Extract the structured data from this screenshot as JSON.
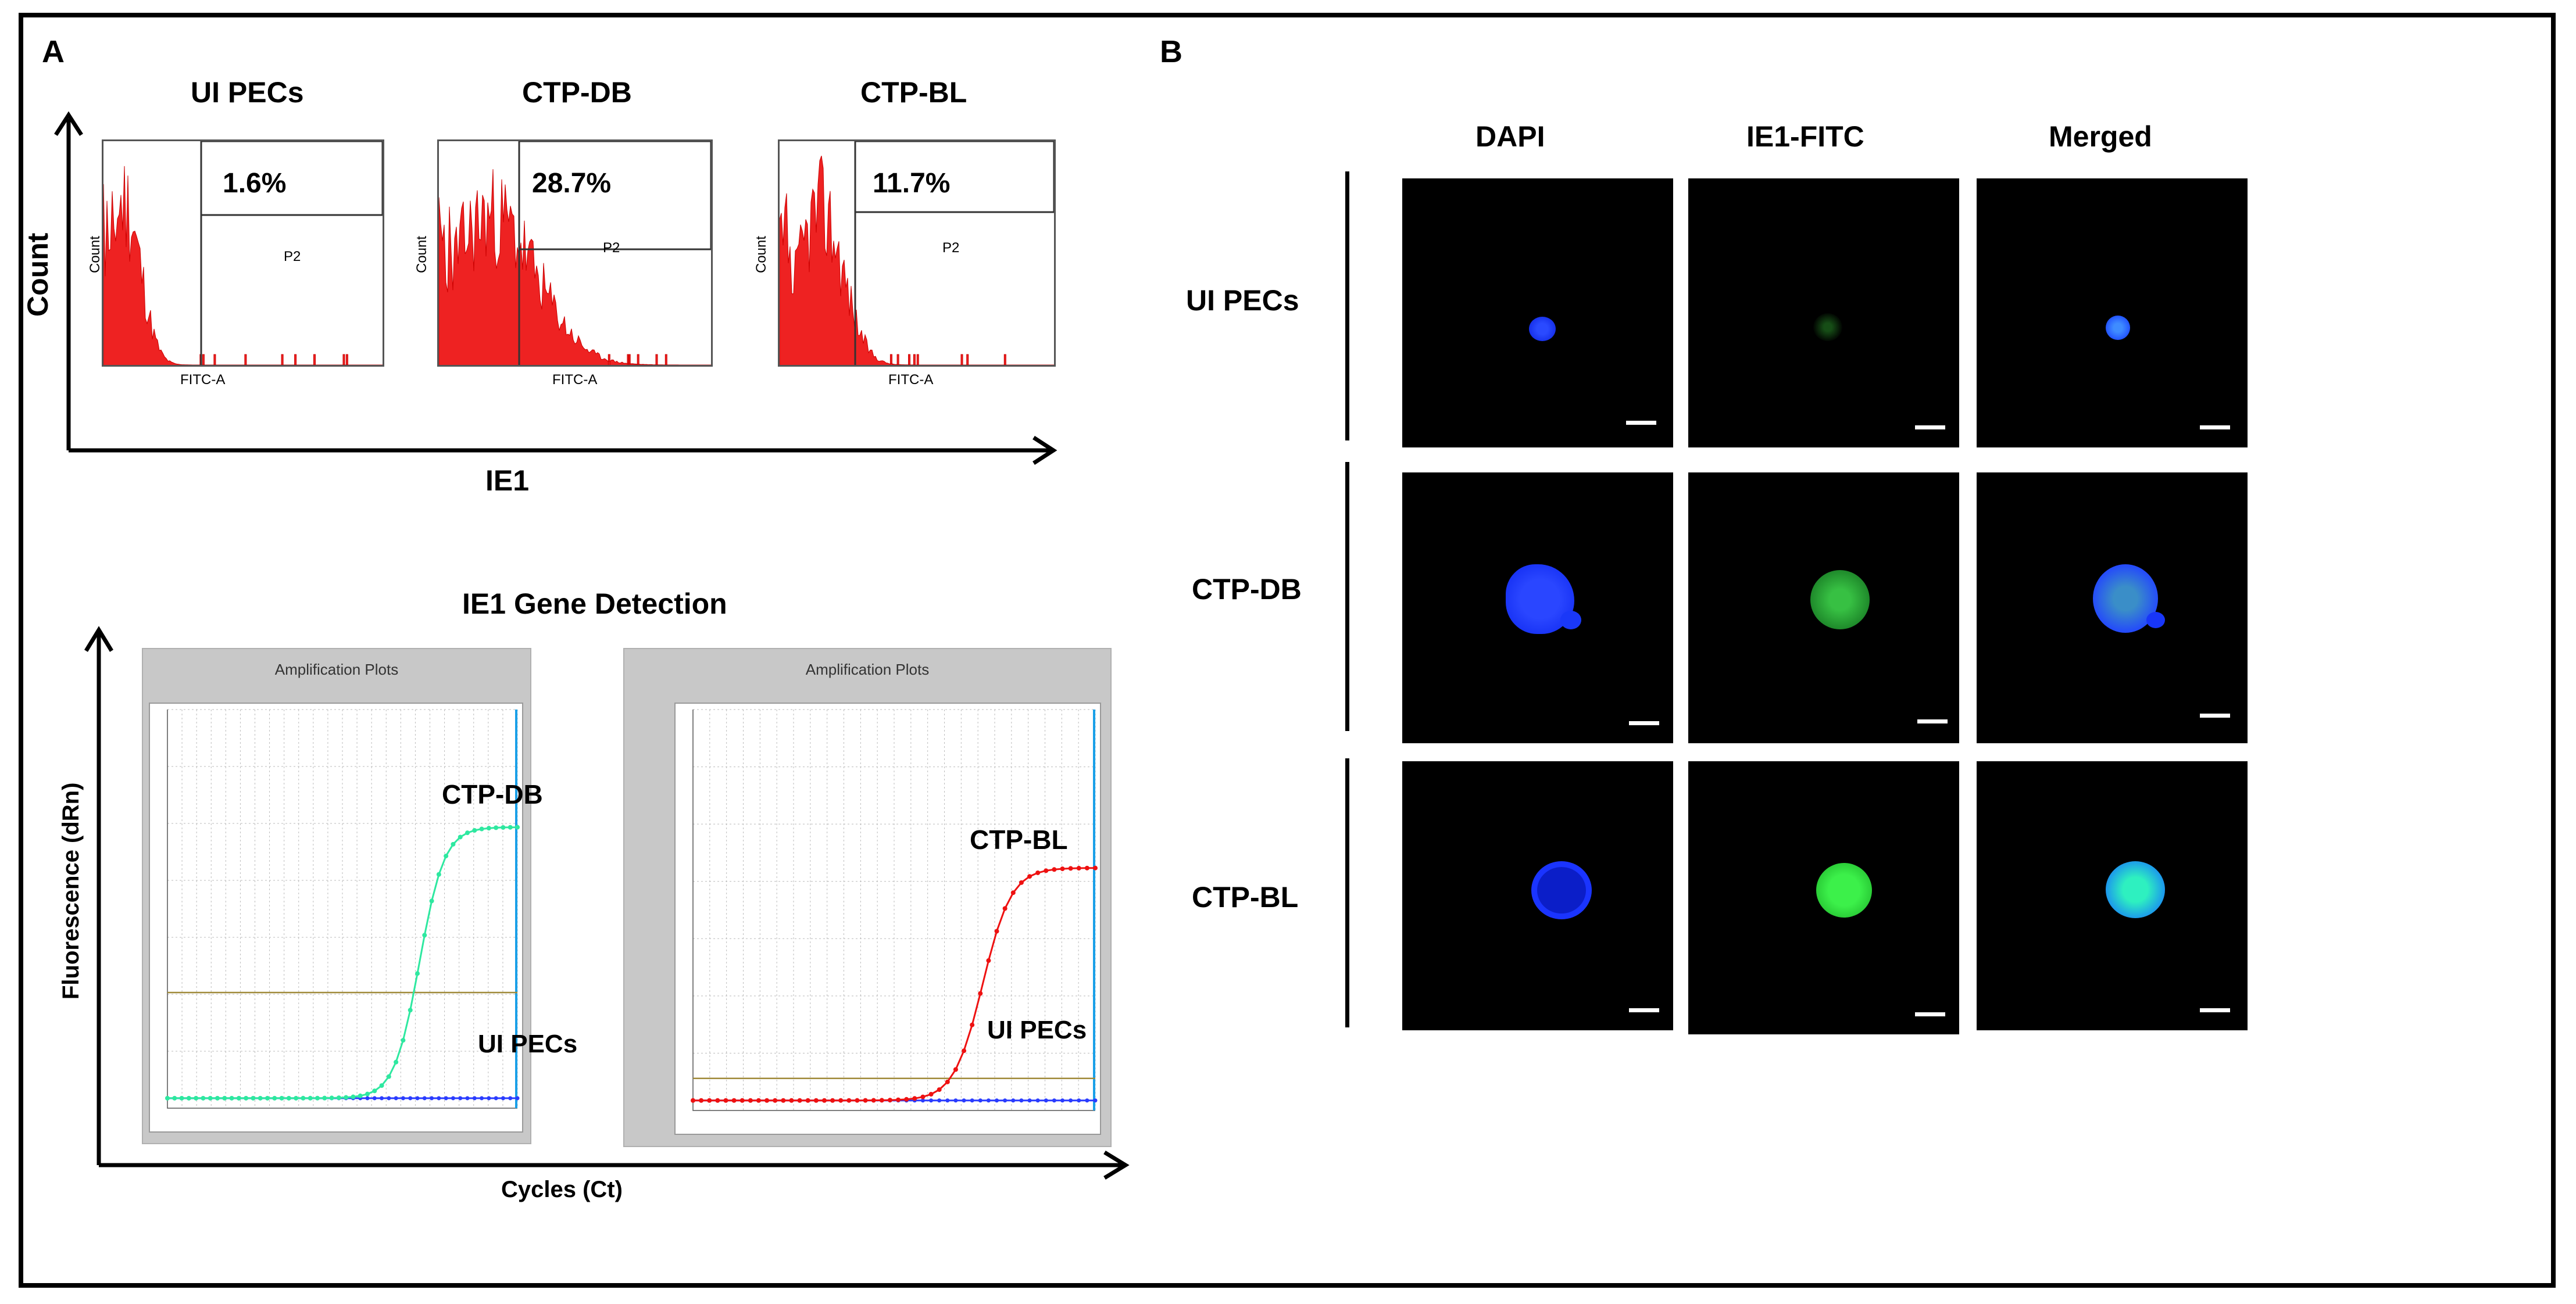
{
  "panel_a": {
    "letter": "A",
    "flow": {
      "y_axis_label": "Count",
      "x_axis_label": "IE1",
      "plots": [
        {
          "title": "UI PECs",
          "percent": "1.6%",
          "gate": "P2",
          "xlabel": "FITC-A",
          "ylabel": "Count"
        },
        {
          "title": "CTP-DB",
          "percent": "28.7%",
          "gate": "P2",
          "xlabel": "FITC-A",
          "ylabel": "Count"
        },
        {
          "title": "CTP-BL",
          "percent": "11.7%",
          "gate": "P2",
          "xlabel": "FITC-A",
          "ylabel": "Count"
        }
      ]
    },
    "pcr": {
      "title": "IE1 Gene Detection",
      "y_axis_label": "Fluorescence (dRn)",
      "x_axis_label": "Cycles (Ct)",
      "plots": [
        {
          "window_title": "Amplification Plots",
          "positive_label": "CTP-DB",
          "negative_label": "UI PECs",
          "color": "#2ee8a0",
          "xlabel": "Cycles",
          "ylabel": "Fluorescence (dRn)"
        },
        {
          "window_title": "Amplification Plots",
          "positive_label": "CTP-BL",
          "negative_label": "UI PECs",
          "color": "#ee1111",
          "xlabel": "Cycles",
          "ylabel": "Fluorescence (dRn)"
        }
      ]
    }
  },
  "panel_b": {
    "letter": "B",
    "columns": [
      "DAPI",
      "IE1-FITC",
      "Merged"
    ],
    "rows": [
      "UI PECs",
      "CTP-DB",
      "CTP-BL"
    ]
  },
  "colors": {
    "dapi": "#1030ff",
    "fitc": "#22dd33",
    "histogram": "#ee2222"
  }
}
